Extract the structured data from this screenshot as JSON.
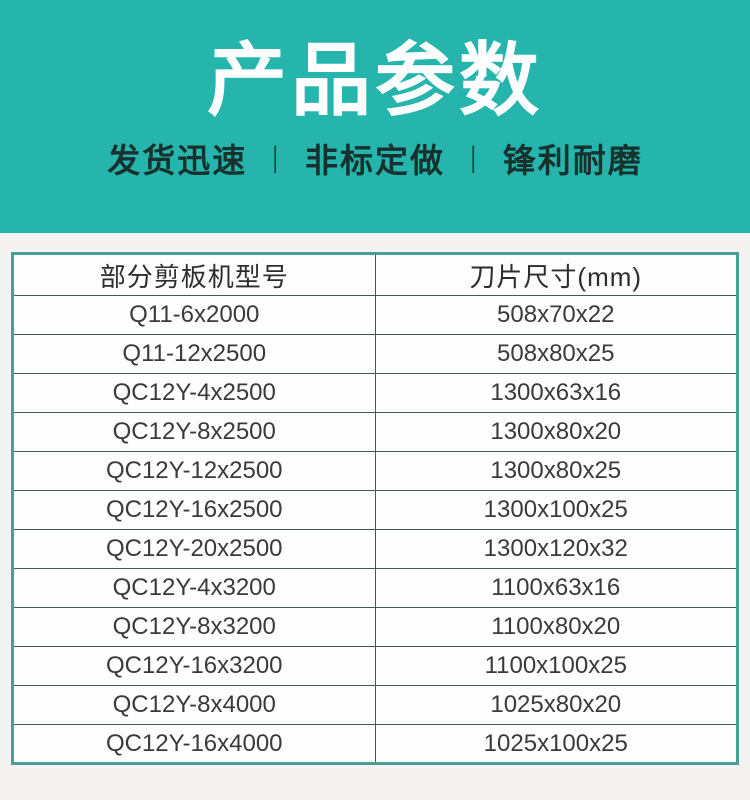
{
  "theme": {
    "brand_teal": "#26b5ac",
    "page_bg": "#f4f3f1",
    "title_color": "#ffffff",
    "tagline_color": "#17322e",
    "table_frame": "#47a093",
    "table_grid": "#45594f",
    "header_text": "#2d2d2d",
    "cell_text": "#3a3a3a"
  },
  "header": {
    "title": "产品参数",
    "separator": "|",
    "features": [
      "发货迅速",
      "非标定做",
      "锋利耐磨"
    ]
  },
  "table": {
    "columns": [
      "部分剪板机型号",
      "刀片尺寸(mm)"
    ],
    "rows": [
      {
        "model": "Q11-6x2000",
        "size": "508x70x22"
      },
      {
        "model": "Q11-12x2500",
        "size": "508x80x25"
      },
      {
        "model": "QC12Y-4x2500",
        "size": "1300x63x16"
      },
      {
        "model": "QC12Y-8x2500",
        "size": "1300x80x20"
      },
      {
        "model": "QC12Y-12x2500",
        "size": "1300x80x25"
      },
      {
        "model": "QC12Y-16x2500",
        "size": "1300x100x25"
      },
      {
        "model": "QC12Y-20x2500",
        "size": "1300x120x32"
      },
      {
        "model": "QC12Y-4x3200",
        "size": "1100x63x16"
      },
      {
        "model": "QC12Y-8x3200",
        "size": "1100x80x20"
      },
      {
        "model": "QC12Y-16x3200",
        "size": "1100x100x25"
      },
      {
        "model": "QC12Y-8x4000",
        "size": "1025x80x20"
      },
      {
        "model": "QC12Y-16x4000",
        "size": "1025x100x25"
      }
    ]
  }
}
